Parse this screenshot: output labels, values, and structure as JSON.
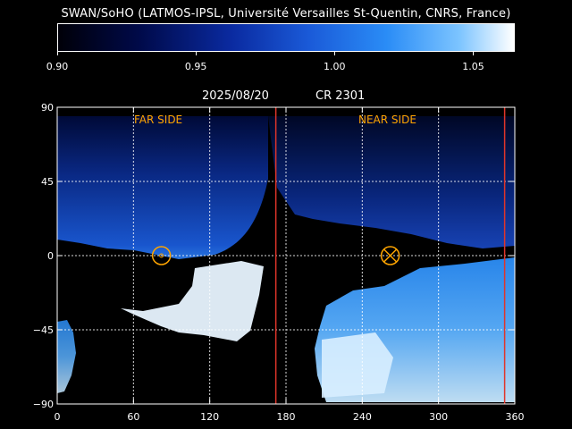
{
  "title": "SWAN/SoHO (LATMOS-IPSL, Université Versailles St-Quentin, CNRS, France)",
  "colorbar": {
    "ticks": [
      "0.90",
      "0.95",
      "1.00",
      "1.05"
    ],
    "range": [
      0.9,
      1.065
    ]
  },
  "map": {
    "date": "2025/08/20",
    "carrington": "CR 2301",
    "far_side_label": "FAR SIDE",
    "near_side_label": "NEAR SIDE",
    "x_ticks": [
      "0",
      "60",
      "120",
      "180",
      "240",
      "300",
      "360"
    ],
    "y_ticks": [
      "90",
      "45",
      "0",
      "−45",
      "−90"
    ],
    "x_range": [
      0,
      360
    ],
    "y_range": [
      -90,
      90
    ],
    "boundary_lines_lon": [
      172,
      352
    ],
    "far_side_center": {
      "lon": 82,
      "lat": 0
    },
    "near_side_center": {
      "lon": 262,
      "lat": 0
    },
    "colors": {
      "boundary": "#e0352a",
      "marker": "#ffa500",
      "grid": "#ffffff"
    }
  }
}
